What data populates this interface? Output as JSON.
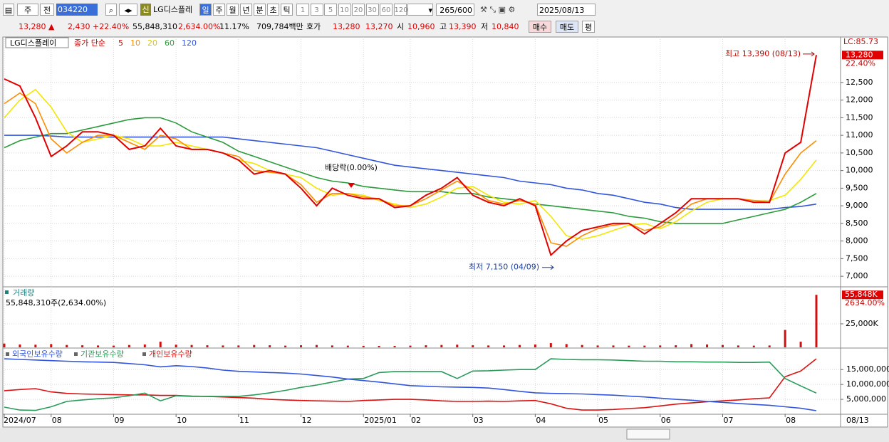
{
  "toolbar": {
    "items": [
      "주",
      "전"
    ],
    "code": "034220",
    "badge": "신",
    "name": "LG디스플레",
    "periods": [
      "일",
      "주",
      "월",
      "년",
      "분",
      "초",
      "틱"
    ],
    "intervals": [
      "1",
      "3",
      "5",
      "10",
      "20",
      "30",
      "60",
      "120"
    ],
    "count": "265/600",
    "date": "2025/08/13"
  },
  "quote": {
    "price": "13,280 ▲",
    "change": "2,430",
    "change_pct": "+22.40%",
    "volume": "55,848,310",
    "volume_pct": "2,634.00%",
    "turnover": "11.17%",
    "amount": "709,784백만",
    "ask_label": "호가",
    "ask": "13,280",
    "bid": "13,270",
    "open_label": "시",
    "open": "10,960",
    "high_label": "고",
    "high": "13,390",
    "low_label": "저",
    "low": "10,840",
    "buy": "매수",
    "sell": "매도",
    "avg": "평"
  },
  "chart_data": [
    {
      "type": "line",
      "title": "LG디스플레이",
      "legend_title": "종가 단순",
      "lc_label": "LC:85.73",
      "last_pct": "22.40%",
      "series": [
        {
          "name": "5",
          "color": "#e00000",
          "values": [
            12600,
            12400,
            11500,
            10400,
            10700,
            11100,
            11100,
            11000,
            10600,
            10700,
            11200,
            10700,
            10600,
            10600,
            10500,
            10300,
            9900,
            10000,
            9900,
            9500,
            9000,
            9500,
            9300,
            9200,
            9200,
            8950,
            9000,
            9300,
            9500,
            9800,
            9300,
            9100,
            9000,
            9200,
            9000,
            7600,
            8000,
            8300,
            8400,
            8500,
            8500,
            8200,
            8500,
            8800,
            9200,
            9200,
            9200,
            9200,
            9100,
            9100,
            10500,
            10800,
            13280
          ],
          "value_labels": [
            null,
            null,
            null,
            null,
            null,
            null,
            null,
            null,
            null,
            null,
            null,
            null,
            null,
            null,
            null,
            null,
            null,
            null,
            null,
            null,
            null,
            null,
            null,
            null,
            null,
            null,
            null,
            null,
            null,
            null,
            null,
            null,
            null,
            null,
            null,
            null,
            null,
            null,
            null,
            null,
            null,
            null,
            null,
            null,
            null,
            null,
            null,
            null,
            null,
            null,
            null,
            null,
            "13,280"
          ]
        },
        {
          "name": "10",
          "color": "#ff8c00",
          "values": [
            11900,
            12200,
            11900,
            10900,
            10500,
            10800,
            11000,
            11000,
            10800,
            10600,
            11000,
            10900,
            10600,
            10600,
            10500,
            10400,
            10000,
            9950,
            9900,
            9600,
            9100,
            9350,
            9350,
            9250,
            9200,
            9000,
            9000,
            9200,
            9450,
            9700,
            9450,
            9150,
            9050,
            9150,
            9050,
            7950,
            7850,
            8150,
            8350,
            8450,
            8500,
            8300,
            8400,
            8700,
            9050,
            9200,
            9200,
            9200,
            9150,
            9100,
            9900,
            10500,
            10850
          ]
        },
        {
          "name": "20",
          "color": "#f2e600",
          "values": [
            11500,
            12000,
            12300,
            11800,
            11100,
            10800,
            10900,
            11000,
            10900,
            10700,
            10700,
            10800,
            10700,
            10600,
            10500,
            10300,
            10200,
            10000,
            9900,
            9800,
            9500,
            9300,
            9350,
            9300,
            9150,
            9050,
            8950,
            9050,
            9250,
            9500,
            9550,
            9300,
            9100,
            9050,
            9150,
            8700,
            8150,
            8050,
            8150,
            8300,
            8450,
            8500,
            8350,
            8550,
            8850,
            9100,
            9200,
            9200,
            9150,
            9150,
            9300,
            9750,
            10300
          ]
        },
        {
          "name": "60",
          "color": "#2a9a3c",
          "values": [
            10650,
            10850,
            10950,
            11050,
            11050,
            11150,
            11250,
            11350,
            11450,
            11500,
            11500,
            11350,
            11100,
            10950,
            10800,
            10550,
            10400,
            10250,
            10100,
            9950,
            9800,
            9700,
            9650,
            9550,
            9500,
            9450,
            9400,
            9400,
            9400,
            9350,
            9350,
            9250,
            9200,
            9150,
            9050,
            9000,
            8950,
            8900,
            8850,
            8800,
            8700,
            8650,
            8550,
            8500,
            8500,
            8500,
            8500,
            8600,
            8700,
            8800,
            8900,
            9100,
            9350
          ]
        },
        {
          "name": "120",
          "color": "#3355dd",
          "values": [
            11000,
            11000,
            11000,
            10980,
            10950,
            10950,
            10950,
            10950,
            10950,
            10950,
            10950,
            10950,
            10950,
            10950,
            10950,
            10900,
            10850,
            10800,
            10750,
            10700,
            10650,
            10550,
            10450,
            10350,
            10250,
            10150,
            10100,
            10050,
            10000,
            9950,
            9900,
            9850,
            9800,
            9700,
            9650,
            9600,
            9500,
            9450,
            9350,
            9300,
            9200,
            9100,
            9050,
            8950,
            8900,
            8900,
            8900,
            8900,
            8900,
            8900,
            8950,
            8980,
            9050
          ]
        }
      ],
      "ylim": [
        6760,
        13710
      ],
      "yticks": [
        {
          "value": 7000,
          "label": "7,000"
        },
        {
          "value": 7500,
          "label": "7,500"
        },
        {
          "value": 8000,
          "label": "8,000"
        },
        {
          "value": 8500,
          "label": "8,500"
        },
        {
          "value": 9000,
          "label": "9,000"
        },
        {
          "value": 9500,
          "label": "9,500"
        },
        {
          "value": 10000,
          "label": "10,000"
        },
        {
          "value": 10500,
          "label": "10,500"
        },
        {
          "value": 11000,
          "label": "11,000"
        },
        {
          "value": 11500,
          "label": "11,500"
        },
        {
          "value": 12000,
          "label": "12,000"
        },
        {
          "value": 12500,
          "label": "12,500"
        }
      ],
      "grid": true,
      "annotations": [
        {
          "text": "최고 13,390 (08/13)",
          "value": 13390
        },
        {
          "text": "최저 7,150 (04/09)",
          "value": 7150
        },
        {
          "text": "배당락(0.00%)"
        }
      ]
    },
    {
      "type": "bar",
      "title": "거래량",
      "subtitle": "55,848,310주(2,634.00%)",
      "color": "#d01010",
      "last_pct": "2634.00%",
      "values": [
        4000,
        3000,
        2800,
        3500,
        2500,
        2200,
        2000,
        1800,
        2500,
        3000,
        6000,
        2800,
        2500,
        2200,
        2000,
        2000,
        2500,
        2200,
        1800,
        2200,
        2500,
        2000,
        1800,
        1600,
        1500,
        1500,
        1800,
        2200,
        2500,
        2800,
        2200,
        2000,
        2000,
        2500,
        3000,
        4500,
        3500,
        2500,
        2000,
        2000,
        1800,
        1800,
        2000,
        2200,
        3500,
        3000,
        2500,
        2000,
        1800,
        2000,
        18500,
        6000,
        55848
      ],
      "value_labels": [
        null,
        null,
        null,
        null,
        null,
        null,
        null,
        null,
        null,
        null,
        null,
        null,
        null,
        null,
        null,
        null,
        null,
        null,
        null,
        null,
        null,
        null,
        null,
        null,
        null,
        null,
        null,
        null,
        null,
        null,
        null,
        null,
        null,
        null,
        null,
        null,
        null,
        null,
        null,
        null,
        null,
        null,
        null,
        null,
        null,
        null,
        null,
        null,
        null,
        null,
        null,
        null,
        "55,848K"
      ],
      "ylim": [
        0,
        63600
      ],
      "yticks": [
        {
          "value": 25000,
          "label": "25,000K"
        }
      ]
    },
    {
      "type": "line",
      "categories": [
        "2024/07",
        null,
        null,
        "08",
        null,
        null,
        null,
        "09",
        null,
        null,
        null,
        "10",
        null,
        null,
        null,
        "11",
        null,
        null,
        null,
        "12",
        null,
        null,
        null,
        "2025/01",
        null,
        null,
        "02",
        null,
        null,
        null,
        "03",
        null,
        null,
        null,
        "04",
        null,
        null,
        null,
        "05",
        null,
        null,
        null,
        "06",
        null,
        null,
        null,
        "07",
        null,
        null,
        null,
        "08",
        null,
        null
      ],
      "last_date": "08/13",
      "series": [
        {
          "name": "외국인보유수량",
          "color": "#3355dd",
          "values": [
            18600000,
            18400000,
            18200000,
            18000000,
            17800000,
            17600000,
            17500000,
            17400000,
            17000000,
            16600000,
            15900000,
            16300000,
            16000000,
            15500000,
            14800000,
            14400000,
            14200000,
            14000000,
            13800000,
            13500000,
            13000000,
            12500000,
            11800000,
            11300000,
            10800000,
            10200000,
            9600000,
            9400000,
            9200000,
            9100000,
            9000000,
            8800000,
            8300000,
            7700000,
            7200000,
            7000000,
            6900000,
            6800000,
            6600000,
            6400000,
            6100000,
            5800000,
            5400000,
            5000000,
            4700000,
            4300000,
            4000000,
            3600000,
            3300000,
            3000000,
            2500000,
            2000000,
            1200000
          ]
        },
        {
          "name": "기관보유수량",
          "color": "#2a9a5a",
          "values": [
            2400000,
            1400000,
            1300000,
            2500000,
            4300000,
            4800000,
            5200000,
            5500000,
            6200000,
            7100000,
            4500000,
            6200000,
            6000000,
            6000000,
            6000000,
            6000000,
            6500000,
            7200000,
            8000000,
            9000000,
            9800000,
            10800000,
            11800000,
            12000000,
            14000000,
            14300000,
            14300000,
            14300000,
            14300000,
            12000000,
            14500000,
            14600000,
            14800000,
            15000000,
            15000000,
            18600000,
            18400000,
            18300000,
            18300000,
            18200000,
            18000000,
            17800000,
            17800000,
            17600000,
            17600000,
            17500000,
            17500000,
            17400000,
            17400000,
            17500000,
            12000000,
            9500000,
            7100000
          ]
        },
        {
          "name": "개인보유수량",
          "color": "#dd1111",
          "values": [
            7900000,
            8300000,
            8600000,
            7500000,
            7000000,
            6800000,
            6700000,
            6600000,
            6500000,
            6500000,
            6300000,
            6300000,
            6100000,
            6000000,
            5800000,
            5600000,
            5400000,
            5000000,
            4800000,
            4600000,
            4500000,
            4400000,
            4300000,
            4600000,
            4800000,
            5000000,
            5000000,
            4800000,
            4500000,
            4300000,
            4300000,
            4400000,
            4300000,
            4500000,
            4600000,
            3500000,
            2000000,
            1400000,
            1400000,
            1600000,
            1900000,
            2200000,
            2800000,
            3400000,
            3800000,
            4200000,
            4500000,
            4800000,
            5200000,
            5500000,
            12600000,
            14500000,
            18600000
          ]
        }
      ],
      "ylim": [
        0,
        21500000
      ],
      "yticks": [
        {
          "value": 5000000,
          "label": "5,000,000"
        },
        {
          "value": 10000000,
          "label": "10,000,000"
        },
        {
          "value": 15000000,
          "label": "15,000,000"
        }
      ]
    }
  ]
}
